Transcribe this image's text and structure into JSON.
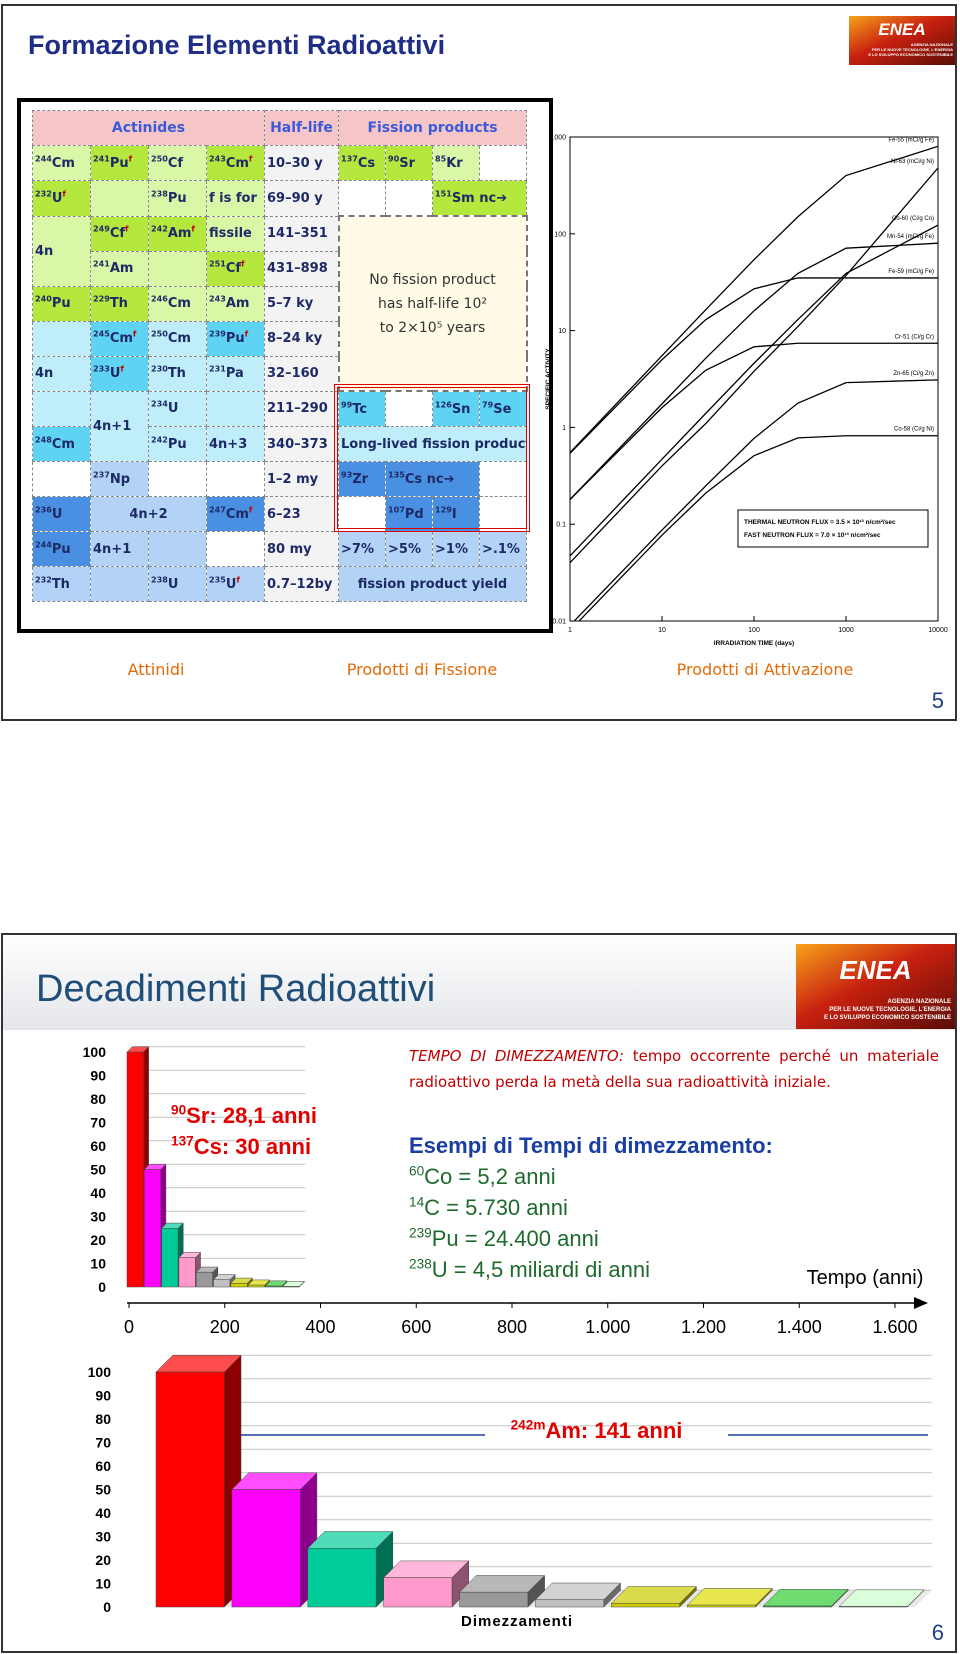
{
  "slides": [
    {
      "title": "Formazione Elementi Radioattivi",
      "logo": {
        "name": "ENEA",
        "lines": [
          "AGENZIA NAZIONALE",
          "PER LE NUOVE TECNOLOGIE, L'ENERGIA",
          "E LO SVILUPPO ECONOMICO SOSTENIBILE"
        ]
      },
      "table": {
        "rows": [
          [
            {
              "text": "Actinides",
              "span": 4,
              "bg": "#f5c5c8"
            },
            {
              "text": "Half-life",
              "bg": "#f5c5c8"
            },
            {
              "text": "Fission products",
              "span": 4,
              "bg": "#f5c5c8"
            }
          ],
          [
            {
              "sup": "244",
              "text": "Cm",
              "bg": "#d9f7a6"
            },
            {
              "sup": "241",
              "text": "Pu",
              "flag": "f",
              "bg": "#b5e83e"
            },
            {
              "sup": "250",
              "text": "Cf",
              "bg": "#d9f7a6"
            },
            {
              "sup": "243",
              "text": "Cm",
              "flag": "f",
              "bg": "#b5e83e"
            },
            {
              "text": "10–30 y",
              "bg": "#f3f3f3"
            },
            {
              "sup": "137",
              "text": "Cs",
              "bg": "#b5e83e"
            },
            {
              "sup": "90",
              "text": "Sr",
              "bg": "#b5e83e"
            },
            {
              "sup": "85",
              "text": "Kr",
              "bg": "#d9f7a6"
            },
            {
              "bg": "#ffffff"
            }
          ],
          [
            {
              "sup": "232",
              "text": "U",
              "flag": "f",
              "bg": "#b5e83e"
            },
            {
              "bg": "#d9f7a6"
            },
            {
              "sup": "238",
              "text": "Pu",
              "bg": "#d9f7a6"
            },
            {
              "text": "f is for",
              "bg": "#d9f7a6"
            },
            {
              "text": "69–90 y",
              "bg": "#f3f3f3"
            },
            {
              "bg": "#ffffff"
            },
            {
              "bg": "#ffffff"
            },
            {
              "sup": "151",
              "text": "Sm nc➔",
              "span": 2,
              "bg": "#b5e83e"
            }
          ],
          [
            {
              "text": "4n",
              "rows": 2,
              "bg": "#d9f7a6"
            },
            {
              "sup": "249",
              "text": "Cf",
              "flag": "f",
              "bg": "#b5e83e"
            },
            {
              "sup": "242",
              "text": "Am",
              "flag": "f",
              "bg": "#b5e83e"
            },
            {
              "text": "fissile",
              "bg": "#d9f7a6"
            },
            {
              "text": "141–351",
              "bg": "#f3f3f3"
            },
            {
              "note": [
                "No fission product",
                "has half-life 10²",
                "to 2×10⁵ years"
              ],
              "span": 4,
              "rows": 5,
              "bg": "#fffbe6"
            }
          ],
          [
            {
              "sup": "241",
              "text": "Am",
              "bg": "#d9f7a6"
            },
            {
              "bg": "#d9f7a6"
            },
            {
              "sup": "251",
              "text": "Cf",
              "flag": "f",
              "bg": "#b5e83e"
            },
            {
              "text": "431–898",
              "bg": "#f3f3f3"
            }
          ],
          [
            {
              "sup": "240",
              "text": "Pu",
              "bg": "#b5e83e"
            },
            {
              "sup": "229",
              "text": "Th",
              "bg": "#b5e83e"
            },
            {
              "sup": "246",
              "text": "Cm",
              "bg": "#d9f7a6"
            },
            {
              "sup": "243",
              "text": "Am",
              "bg": "#d9f7a6"
            },
            {
              "text": "5–7 ky",
              "bg": "#f3f3f3"
            }
          ],
          [
            {
              "bg": "#bfeefa"
            },
            {
              "sup": "245",
              "text": "Cm",
              "flag": "f",
              "bg": "#5fd3f3"
            },
            {
              "sup": "250",
              "text": "Cm",
              "bg": "#bfeefa"
            },
            {
              "sup": "239",
              "text": "Pu",
              "flag": "f",
              "bg": "#5fd3f3"
            },
            {
              "text": "8–24 ky",
              "bg": "#f3f3f3"
            }
          ],
          [
            {
              "text": "4n",
              "bg": "#bfeefa"
            },
            {
              "sup": "233",
              "text": "U",
              "flag": "f",
              "bg": "#5fd3f3"
            },
            {
              "sup": "230",
              "text": "Th",
              "bg": "#bfeefa"
            },
            {
              "sup": "231",
              "text": "Pa",
              "bg": "#bfeefa"
            },
            {
              "text": "32–160",
              "bg": "#f3f3f3"
            }
          ],
          [
            {
              "bg": "#bfeefa"
            },
            {
              "text": "4n+1",
              "rows": 2,
              "bg": "#bfeefa"
            },
            {
              "sup": "234",
              "text": "U",
              "bg": "#bfeefa"
            },
            {
              "bg": "#bfeefa"
            },
            {
              "text": "211–290",
              "bg": "#f3f3f3"
            },
            {
              "sup": "99",
              "text": "Tc",
              "bg": "#5fd3f3"
            },
            {
              "bg": "#ffffff"
            },
            {
              "sup": "126",
              "text": "Sn",
              "bg": "#5fd3f3"
            },
            {
              "sup": "79",
              "text": "Se",
              "bg": "#5fd3f3"
            }
          ],
          [
            {
              "sup": "248",
              "text": "Cm",
              "bg": "#5fd3f3"
            },
            {
              "sup": "242",
              "text": "Pu",
              "bg": "#bfeefa"
            },
            {
              "text": "4n+3",
              "bg": "#bfeefa"
            },
            {
              "text": "340–373",
              "bg": "#f3f3f3"
            },
            {
              "text": "Long-lived fission products",
              "span": 4,
              "bg": "#bfeefa"
            }
          ],
          [
            {
              "bg": "#ffffff"
            },
            {
              "sup": "237",
              "text": "Np",
              "bg": "#b3d3f6"
            },
            {
              "bg": "#ffffff"
            },
            {
              "bg": "#ffffff"
            },
            {
              "text": "1–2 my",
              "bg": "#f3f3f3"
            },
            {
              "sup": "93",
              "text": "Zr",
              "bg": "#4a90e2"
            },
            {
              "sup": "135",
              "text": "Cs nc➔",
              "span": 2,
              "bg": "#4a90e2"
            },
            {
              "bg": "#ffffff"
            }
          ],
          [
            {
              "sup": "236",
              "text": "U",
              "bg": "#4a90e2"
            },
            {
              "text": "4n+2",
              "span": 2,
              "bg": "#b3d3f6"
            },
            {
              "sup": "247",
              "text": "Cm",
              "flag": "f",
              "bg": "#4a90e2"
            },
            {
              "text": "6–23",
              "bg": "#f3f3f3"
            },
            {
              "bg": "#ffffff"
            },
            {
              "sup": "107",
              "text": "Pd",
              "bg": "#4a90e2"
            },
            {
              "sup": "129",
              "text": "I",
              "bg": "#4a90e2"
            },
            {
              "bg": "#ffffff"
            }
          ],
          [
            {
              "sup": "244",
              "text": "Pu",
              "bg": "#4a90e2"
            },
            {
              "text": "4n+1",
              "bg": "#b3d3f6"
            },
            {
              "bg": "#b3d3f6"
            },
            {
              "bg": "#ffffff"
            },
            {
              "text": "80 my",
              "bg": "#f3f3f3"
            },
            {
              "text": ">7%",
              "bg": "#b3d3f6"
            },
            {
              "text": ">5%",
              "bg": "#b3d3f6"
            },
            {
              "text": ">1%",
              "bg": "#b3d3f6"
            },
            {
              "text": ">.1%",
              "bg": "#b3d3f6"
            }
          ],
          [
            {
              "sup": "232",
              "text": "Th",
              "bg": "#b3d3f6"
            },
            {
              "bg": "#b3d3f6"
            },
            {
              "sup": "238",
              "text": "U",
              "bg": "#b3d3f6"
            },
            {
              "sup": "235",
              "text": "U",
              "flag": "f",
              "bg": "#b3d3f6"
            },
            {
              "text": "0.7–12by",
              "bg": "#f3f3f3"
            },
            {
              "text": "fission product yield",
              "span": 4,
              "bg": "#b3d3f6"
            }
          ]
        ]
      },
      "captions": [
        "Attinidi",
        "Prodotti di Fissione",
        "Prodotti di Attivazione"
      ],
      "page": "5"
    },
    {
      "title": "Decadimenti Radioattivi",
      "logo": {
        "name": "ENEA",
        "lines": [
          "AGENZIA NAZIONALE",
          "PER LE NUOVE TECNOLOGIE, L'ENERGIA",
          "E LO SVILUPPO ECONOMICO SOSTENIBILE"
        ]
      },
      "sr": {
        "sup": "90",
        "text": "Sr: 28,1 anni"
      },
      "cs": {
        "sup": "137",
        "text": "Cs: 30 anni"
      },
      "definition": {
        "term": "TEMPO DI DIMEZZAMENTO:",
        "text": "tempo occorrente perché un materiale radioattivo perda la metà della sua radioattività iniziale."
      },
      "examples_title": "Esempi di Tempi di dimezzamento:",
      "examples": [
        {
          "sup": "60",
          "text": "Co = 5,2 anni"
        },
        {
          "sup": "14",
          "text": "C = 5.730 anni"
        },
        {
          "sup": "239",
          "text": "Pu = 24.400 anni"
        },
        {
          "sup": "238",
          "text": "U = 4,5 miliardi di anni"
        }
      ],
      "am": {
        "sup": "242m",
        "text": "Am: 141 anni"
      },
      "page": "6"
    }
  ],
  "chart_data": [
    {
      "type": "line",
      "x_label": "IRRADIATION TIME (days)",
      "y_label": "SPECIFIC ACTIVITY",
      "log_x": true,
      "log_y": true,
      "x": [
        1,
        10,
        30,
        100,
        300,
        1000,
        10000
      ],
      "xlim": [
        1,
        10000
      ],
      "xticks": [
        1,
        10,
        100,
        1000,
        10000
      ],
      "ylim": [
        0.01,
        1000
      ],
      "yticks": [
        0.01,
        0.1,
        1,
        10,
        100,
        1000
      ],
      "series": [
        {
          "name": "Fe-55 (mCi/g Fe)",
          "color": "#000000",
          "values": [
            0.55,
            5.5,
            16.5,
            54,
            150,
            400,
            800
          ]
        },
        {
          "name": "Ni-63 (mCi/g Ni)",
          "color": "#000000",
          "values": [
            0.04,
            0.4,
            1.1,
            3.8,
            11,
            37,
            480
          ]
        },
        {
          "name": "Co-60 (Ci/g Co)",
          "color": "#000000",
          "values": [
            0.047,
            0.47,
            1.4,
            4.6,
            13,
            39,
            123
          ]
        },
        {
          "name": "Mn-54 (mCi/g Fe)",
          "color": "#000000",
          "values": [
            0.18,
            1.75,
            5.2,
            16,
            39,
            71,
            80
          ]
        },
        {
          "name": "Fe-59 (mCi/g Fe)",
          "color": "#000000",
          "values": [
            0.54,
            5,
            13,
            27,
            35,
            35,
            35
          ]
        },
        {
          "name": "Cr-51 (Ci/g Cr)",
          "color": "#000000",
          "values": [
            0.18,
            1.6,
            3.9,
            6.8,
            7.4,
            7.4,
            7.4
          ]
        },
        {
          "name": "Zn-65 (Ci/g Zn)",
          "color": "#000000",
          "values": [
            0.009,
            0.087,
            0.25,
            0.77,
            1.78,
            2.9,
            3.1
          ]
        },
        {
          "name": "Co-58 (Ci/g Ni)",
          "color": "#000000",
          "values": [
            0.008,
            0.077,
            0.21,
            0.51,
            0.78,
            0.82,
            0.82
          ]
        }
      ],
      "annotations": [
        "THERMAL NEUTRON FLUX = 3.5 × 10¹³ n/cm²/sec",
        "FAST NEUTRON FLUX = 7.0 × 10¹³ n/cm²/sec"
      ]
    },
    {
      "type": "bar3d",
      "x_label": "Tempo (anni)",
      "categories": [
        null,
        null,
        null,
        null,
        null,
        null,
        null,
        null,
        null,
        null
      ],
      "values": [
        100,
        50,
        25,
        12.5,
        6.3,
        3.1,
        1.6,
        0.8,
        0.4,
        0.2
      ],
      "colors": [
        "#ff0000",
        "#ff00ff",
        "#00cc99",
        "#ff99cc",
        "#999999",
        "#c0c0c0",
        "#cccc00",
        "#dddd00",
        "#33cc33",
        "#ccffcc"
      ],
      "ylim": [
        0,
        100
      ],
      "yticks": [
        0,
        10,
        20,
        30,
        40,
        50,
        60,
        70,
        80,
        90,
        100
      ],
      "grid": true,
      "xlim": [
        0,
        1600
      ],
      "xticks": [
        0,
        200,
        400,
        600,
        800,
        {
          "value": 1000,
          "label": "1.000"
        },
        {
          "value": 1200,
          "label": "1.200"
        },
        {
          "value": 1400,
          "label": "1.400"
        },
        {
          "value": 1600,
          "label": "1.600"
        }
      ]
    },
    {
      "type": "bar3d",
      "x_label": "Dimezzamenti",
      "categories": [
        null,
        null,
        null,
        null,
        null,
        null,
        null,
        null,
        null,
        null
      ],
      "values": [
        100,
        50,
        25,
        12.5,
        6.3,
        3.1,
        1.6,
        0.8,
        0.4,
        0.2
      ],
      "colors": [
        "#ff0000",
        "#ff00ff",
        "#00cc99",
        "#ff99cc",
        "#999999",
        "#c0c0c0",
        "#cccc00",
        "#dddd00",
        "#33cc33",
        "#ccffcc"
      ],
      "ylim": [
        0,
        100
      ],
      "yticks": [
        0,
        10,
        20,
        30,
        40,
        50,
        60,
        70,
        80,
        90,
        100
      ],
      "grid": true
    }
  ]
}
